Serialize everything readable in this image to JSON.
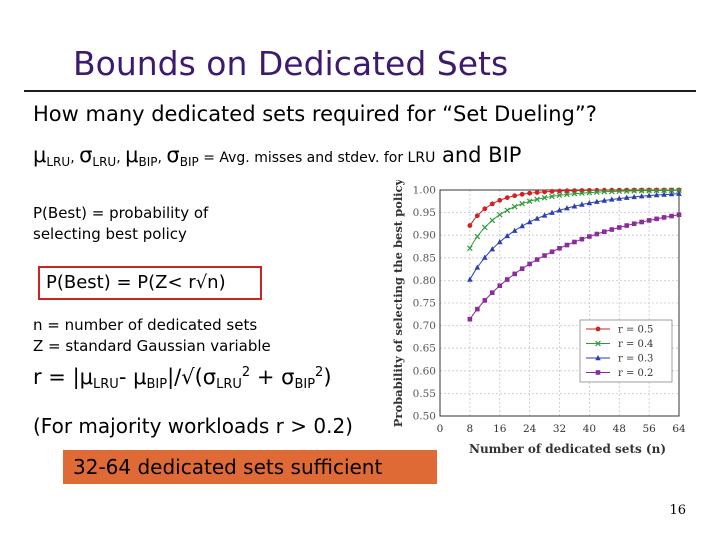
{
  "slide": {
    "title": "Bounds on Dedicated Sets",
    "line1": "How many dedicated sets required for “Set Dueling”?",
    "mu": "μ",
    "sigma": "σ",
    "lru": "LRU",
    "bip": "BIP",
    "comma": ", ",
    "stat_def": " = Avg. misses and stdev. for LRU",
    "stat_def_tail": " and BIP",
    "pbest_def": "P(Best) = probability of selecting best policy",
    "pbest_formula": "P(Best) = P(Z< r√n)",
    "n_def": "n = number of dedicated sets",
    "z_def": "Z = standard Gaussian variable",
    "r_lhs": "r = |",
    "minus": "- ",
    "abs_close": "|/√(",
    "two": "2",
    "plus": " + ",
    "paren_close": ")",
    "majority": "(For majority workloads r > 0.2)",
    "conclusion": "32-64 dedicated sets sufficient",
    "page_number": "16"
  },
  "chart_data": {
    "type": "line",
    "xlabel": "Number of dedicated sets (n)",
    "ylabel": "Probability of selecting the best policy",
    "x_ticks": [
      "0",
      "8",
      "16",
      "24",
      "32",
      "40",
      "48",
      "56",
      "64"
    ],
    "y_ticks": [
      "0.50",
      "0.55",
      "0.60",
      "0.65",
      "0.70",
      "0.75",
      "0.80",
      "0.85",
      "0.90",
      "0.95",
      "1.00"
    ],
    "xlim": [
      0,
      64
    ],
    "ylim": [
      0.5,
      1.0
    ],
    "legend_position": "bottom-right",
    "series": [
      {
        "name": "r = 0.5",
        "color": "#d42020",
        "marker": "circle",
        "formula_r": 0.5
      },
      {
        "name": "r = 0.4",
        "color": "#2f9a3a",
        "marker": "x",
        "formula_r": 0.4
      },
      {
        "name": "r = 0.3",
        "color": "#2a3fb0",
        "marker": "triangle",
        "formula_r": 0.3
      },
      {
        "name": "r = 0.2",
        "color": "#8a2c9a",
        "marker": "square",
        "formula_r": 0.2
      }
    ]
  }
}
